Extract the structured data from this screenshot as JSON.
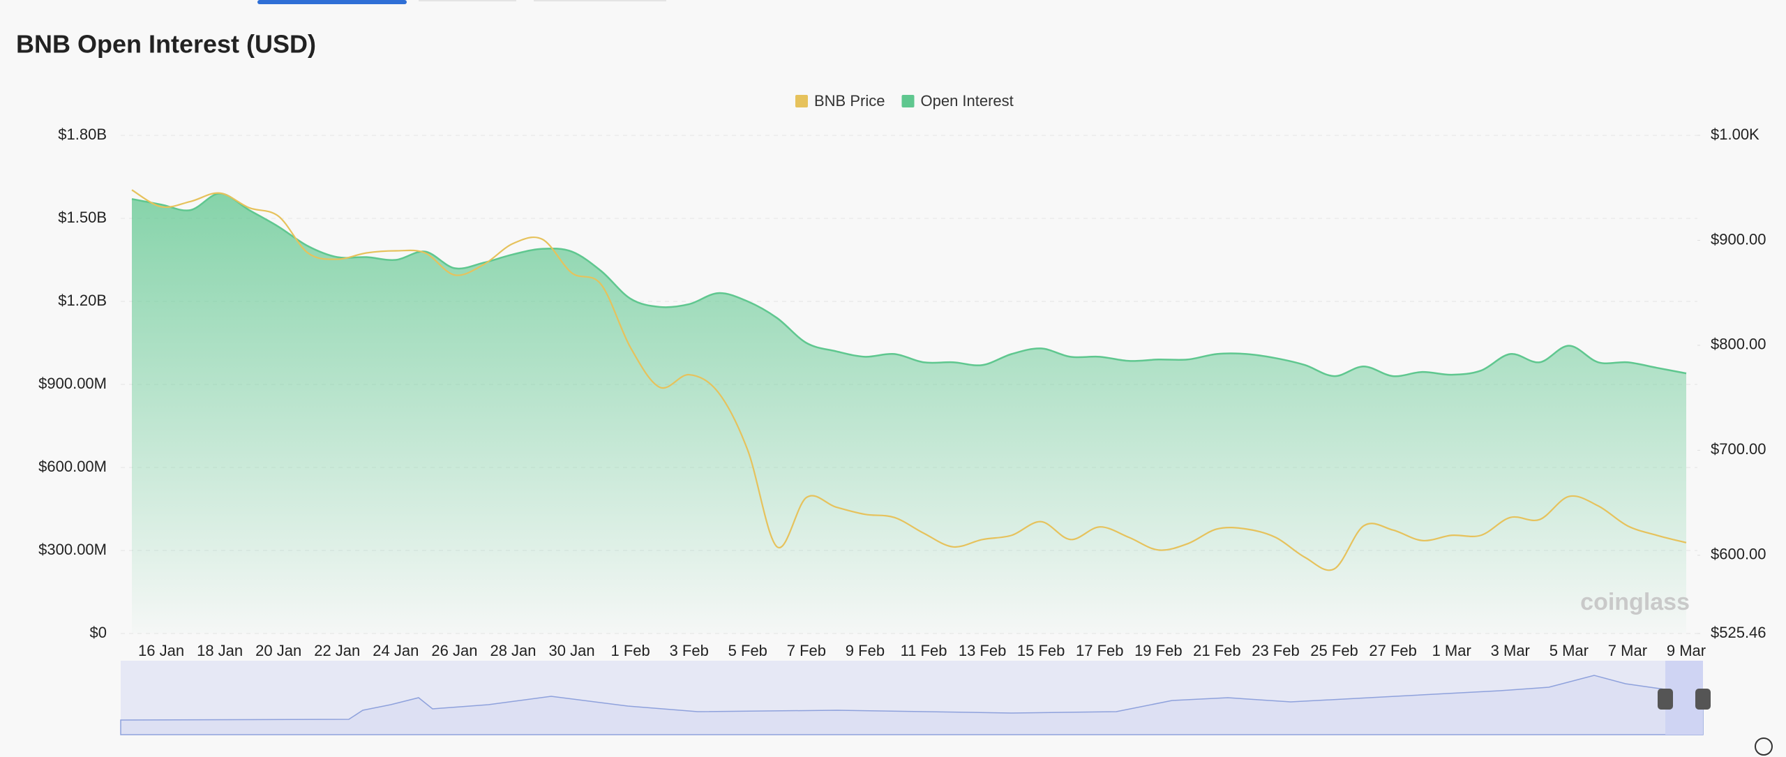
{
  "chart_data": {
    "type": "combo",
    "title": "BNB Open Interest (USD)",
    "watermark": "coinglass",
    "legend": "top",
    "categories": [
      null,
      "16 Jan",
      null,
      "18 Jan",
      null,
      "20 Jan",
      null,
      "22 Jan",
      null,
      "24 Jan",
      null,
      "26 Jan",
      null,
      "28 Jan",
      null,
      "30 Jan",
      null,
      "1 Feb",
      null,
      "3 Feb",
      null,
      "5 Feb",
      null,
      "7 Feb",
      null,
      "9 Feb",
      null,
      "11 Feb",
      null,
      "13 Feb",
      null,
      "15 Feb",
      null,
      "17 Feb",
      null,
      "19 Feb",
      null,
      "21 Feb",
      null,
      "23 Feb",
      null,
      "25 Feb",
      null,
      "27 Feb",
      null,
      "1 Mar",
      null,
      "3 Mar",
      null,
      "5 Mar",
      null,
      "7 Mar",
      null,
      "9 Mar"
    ],
    "series": [
      {
        "name": "BNB Price",
        "type": "line",
        "axis": "y2",
        "color": "#e6c25c",
        "values": [
          948,
          932,
          937,
          945,
          931,
          923,
          888,
          882,
          888,
          890,
          888,
          867,
          877,
          897,
          901,
          869,
          858,
          798,
          760,
          772,
          755,
          700,
          608,
          655,
          646,
          639,
          636,
          621,
          608,
          615,
          619,
          632,
          615,
          627,
          617,
          605,
          611,
          625,
          625,
          617,
          598,
          587,
          628,
          624,
          614,
          619,
          619,
          636,
          634,
          656,
          647,
          628,
          619,
          612
        ]
      },
      {
        "name": "Open Interest",
        "type": "area",
        "color": "#5fc78f",
        "values": [
          1570000000,
          1550000000,
          1530000000,
          1590000000,
          1530000000,
          1470000000,
          1400000000,
          1360000000,
          1360000000,
          1350000000,
          1380000000,
          1320000000,
          1340000000,
          1370000000,
          1390000000,
          1380000000,
          1310000000,
          1210000000,
          1180000000,
          1190000000,
          1230000000,
          1200000000,
          1140000000,
          1050000000,
          1020000000,
          1000000000,
          1010000000,
          980000000,
          980000000,
          970000000,
          1010000000,
          1030000000,
          1000000000,
          1000000000,
          985000000,
          990000000,
          990000000,
          1010000000,
          1010000000,
          995000000,
          970000000,
          930000000,
          965000000,
          930000000,
          945000000,
          935000000,
          950000000,
          1010000000,
          980000000,
          1040000000,
          980000000,
          980000000,
          960000000,
          940000000
        ]
      }
    ],
    "ylim": [
      0,
      1800000000
    ],
    "yticks": [
      {
        "value": 0,
        "label": "$0"
      },
      {
        "value": 300000000,
        "label": "$300.00M"
      },
      {
        "value": 600000000,
        "label": "$600.00M"
      },
      {
        "value": 900000000,
        "label": "$900.00M"
      },
      {
        "value": 1200000000,
        "label": "$1.20B"
      },
      {
        "value": 1500000000,
        "label": "$1.50B"
      },
      {
        "value": 1800000000,
        "label": "$1.80B"
      }
    ],
    "y2lim": [
      525.46,
      1000
    ],
    "y2ticks": [
      {
        "value": 525.46,
        "label": "$525.46"
      },
      {
        "value": 600,
        "label": "$600.00"
      },
      {
        "value": 700,
        "label": "$700.00"
      },
      {
        "value": 800,
        "label": "$800.00"
      },
      {
        "value": 900,
        "label": "$900.00"
      },
      {
        "value": 1000,
        "label": "$1.00K"
      }
    ],
    "grid": true
  }
}
